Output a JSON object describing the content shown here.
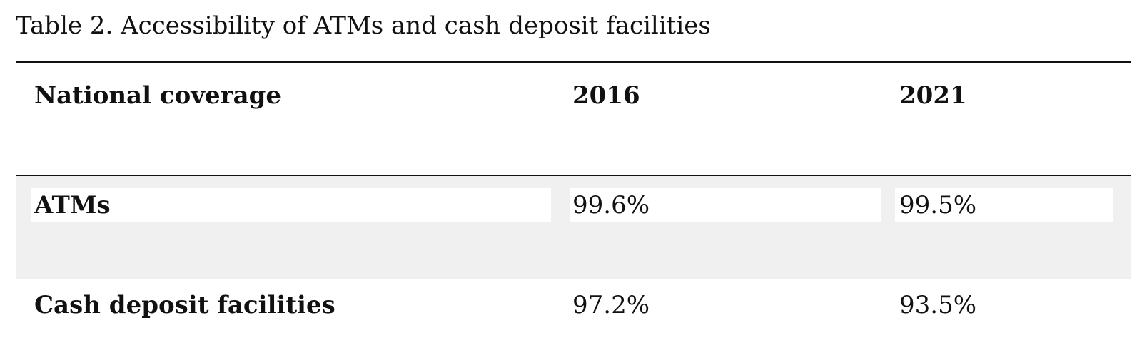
{
  "caption": "Table 2. Accessibility of ATMs and cash deposit facilities",
  "table": {
    "headers": [
      "National coverage",
      "2016",
      "2021"
    ],
    "rows": [
      [
        "ATMs",
        "99.6%",
        "99.5%"
      ],
      [
        "Cash deposit facilities",
        "97.2%",
        "93.5%"
      ]
    ]
  },
  "colors": {
    "shaded_row": "#f0f0f0",
    "rule": "#111111"
  }
}
